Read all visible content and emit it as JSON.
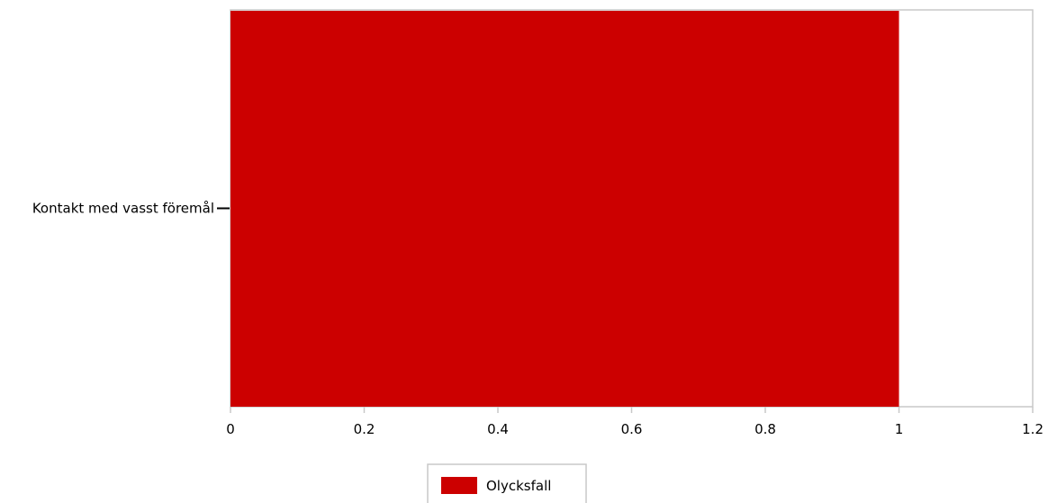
{
  "chart_data": {
    "type": "bar",
    "orientation": "horizontal",
    "categories": [
      "Kontakt med vasst föremål"
    ],
    "series": [
      {
        "name": "Olycksfall",
        "values": [
          1
        ],
        "color": "#cc0000"
      }
    ],
    "xlim": [
      0,
      1.2
    ],
    "xticks": [
      "0",
      "0.2",
      "0.4",
      "0.6",
      "0.8",
      "1",
      "1.2"
    ],
    "grid": false,
    "legend_position": "bottom-center"
  }
}
